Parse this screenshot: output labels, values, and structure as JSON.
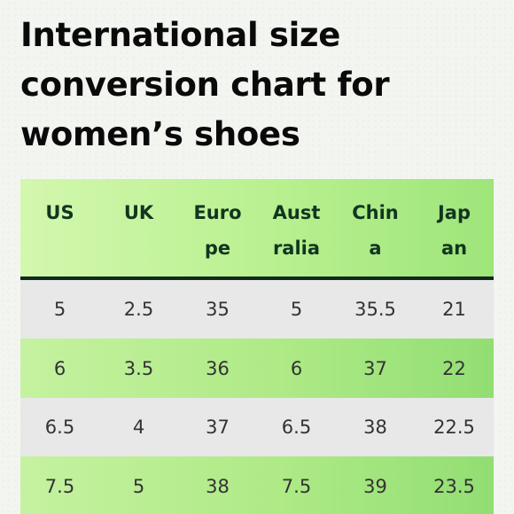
{
  "title_lines": [
    "International size",
    "conversion chart for",
    "women’s shoes"
  ],
  "headers": [
    [
      "US"
    ],
    [
      "UK"
    ],
    [
      "Euro",
      "pe"
    ],
    [
      "Aust",
      "ralia"
    ],
    [
      "Chin",
      "a"
    ],
    [
      "Jap",
      "an"
    ]
  ],
  "rows": [
    [
      "5",
      "2.5",
      "35",
      "5",
      "35.5",
      "21"
    ],
    [
      "6",
      "3.5",
      "36",
      "6",
      "37",
      "22"
    ],
    [
      "6.5",
      "4",
      "37",
      "6.5",
      "38",
      "22.5"
    ],
    [
      "7.5",
      "5",
      "38",
      "7.5",
      "39",
      "23.5"
    ]
  ],
  "colors": {
    "header_bg": "#b8f08f",
    "header_rule": "#0f2a1a",
    "row_light": "#e8e8e8",
    "row_green": "#aeea86",
    "title_text": "#0a0a0a"
  }
}
